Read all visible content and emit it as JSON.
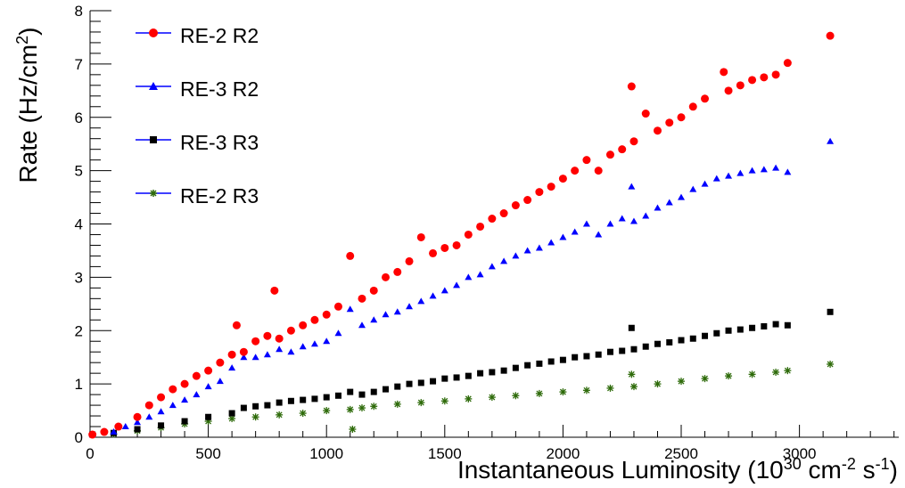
{
  "chart_data": {
    "type": "scatter",
    "ylabel_parts": [
      "Rate (Hz/cm",
      "2",
      ")"
    ],
    "xlabel_parts": [
      "Instantaneous Luminosity (10",
      "30",
      " cm",
      "-2",
      " s",
      "-1",
      ")"
    ],
    "xlim": [
      0,
      3420
    ],
    "ylim": [
      0,
      8
    ],
    "xticks": [
      "0",
      "500",
      "1000",
      "1500",
      "2000",
      "2500",
      "3000"
    ],
    "yticks": [
      "0",
      "1",
      "2",
      "3",
      "4",
      "5",
      "6",
      "7",
      "8"
    ],
    "grid": false,
    "legend_position": "top-left",
    "series": [
      {
        "name": "RE-2 R2",
        "marker": "circle",
        "color": "#ff0000",
        "points": [
          [
            10,
            0.05
          ],
          [
            60,
            0.1
          ],
          [
            120,
            0.2
          ],
          [
            200,
            0.38
          ],
          [
            250,
            0.6
          ],
          [
            300,
            0.75
          ],
          [
            350,
            0.9
          ],
          [
            400,
            1.0
          ],
          [
            450,
            1.15
          ],
          [
            500,
            1.25
          ],
          [
            550,
            1.4
          ],
          [
            600,
            1.55
          ],
          [
            620,
            2.1
          ],
          [
            650,
            1.6
          ],
          [
            700,
            1.8
          ],
          [
            750,
            1.9
          ],
          [
            780,
            2.75
          ],
          [
            800,
            1.85
          ],
          [
            850,
            2.0
          ],
          [
            900,
            2.1
          ],
          [
            950,
            2.2
          ],
          [
            1000,
            2.3
          ],
          [
            1050,
            2.45
          ],
          [
            1100,
            3.4
          ],
          [
            1150,
            2.6
          ],
          [
            1200,
            2.75
          ],
          [
            1250,
            3.0
          ],
          [
            1300,
            3.1
          ],
          [
            1350,
            3.3
          ],
          [
            1400,
            3.75
          ],
          [
            1450,
            3.45
          ],
          [
            1500,
            3.55
          ],
          [
            1550,
            3.6
          ],
          [
            1600,
            3.8
          ],
          [
            1650,
            3.95
          ],
          [
            1700,
            4.1
          ],
          [
            1750,
            4.2
          ],
          [
            1800,
            4.35
          ],
          [
            1850,
            4.45
          ],
          [
            1900,
            4.6
          ],
          [
            1950,
            4.7
          ],
          [
            2000,
            4.85
          ],
          [
            2050,
            5.0
          ],
          [
            2100,
            5.2
          ],
          [
            2150,
            5.0
          ],
          [
            2200,
            5.3
          ],
          [
            2250,
            5.4
          ],
          [
            2290,
            6.58
          ],
          [
            2300,
            5.55
          ],
          [
            2350,
            6.07
          ],
          [
            2400,
            5.75
          ],
          [
            2450,
            5.9
          ],
          [
            2500,
            6.0
          ],
          [
            2550,
            6.2
          ],
          [
            2600,
            6.35
          ],
          [
            2680,
            6.85
          ],
          [
            2700,
            6.5
          ],
          [
            2750,
            6.6
          ],
          [
            2800,
            6.7
          ],
          [
            2850,
            6.75
          ],
          [
            2900,
            6.8
          ],
          [
            2950,
            7.02
          ],
          [
            3130,
            7.53
          ]
        ]
      },
      {
        "name": "RE-3 R2",
        "marker": "triangle",
        "color": "#0000ff",
        "points": [
          [
            10,
            0.05
          ],
          [
            100,
            0.1
          ],
          [
            150,
            0.2
          ],
          [
            200,
            0.28
          ],
          [
            250,
            0.38
          ],
          [
            300,
            0.48
          ],
          [
            350,
            0.6
          ],
          [
            400,
            0.7
          ],
          [
            450,
            0.8
          ],
          [
            500,
            0.95
          ],
          [
            550,
            1.05
          ],
          [
            600,
            1.3
          ],
          [
            650,
            1.5
          ],
          [
            700,
            1.5
          ],
          [
            750,
            1.55
          ],
          [
            800,
            1.65
          ],
          [
            850,
            1.6
          ],
          [
            900,
            1.7
          ],
          [
            950,
            1.75
          ],
          [
            1000,
            1.8
          ],
          [
            1050,
            1.95
          ],
          [
            1100,
            2.4
          ],
          [
            1150,
            2.1
          ],
          [
            1200,
            2.2
          ],
          [
            1250,
            2.3
          ],
          [
            1300,
            2.35
          ],
          [
            1350,
            2.45
          ],
          [
            1400,
            2.55
          ],
          [
            1450,
            2.65
          ],
          [
            1500,
            2.75
          ],
          [
            1550,
            2.85
          ],
          [
            1600,
            3.0
          ],
          [
            1650,
            3.05
          ],
          [
            1700,
            3.2
          ],
          [
            1750,
            3.3
          ],
          [
            1800,
            3.4
          ],
          [
            1850,
            3.5
          ],
          [
            1900,
            3.55
          ],
          [
            1950,
            3.65
          ],
          [
            2000,
            3.75
          ],
          [
            2050,
            3.85
          ],
          [
            2100,
            4.0
          ],
          [
            2150,
            3.8
          ],
          [
            2200,
            4.0
          ],
          [
            2250,
            4.1
          ],
          [
            2290,
            4.7
          ],
          [
            2300,
            4.05
          ],
          [
            2350,
            4.15
          ],
          [
            2400,
            4.3
          ],
          [
            2450,
            4.4
          ],
          [
            2500,
            4.5
          ],
          [
            2550,
            4.65
          ],
          [
            2600,
            4.75
          ],
          [
            2650,
            4.85
          ],
          [
            2700,
            4.9
          ],
          [
            2750,
            4.95
          ],
          [
            2800,
            5.0
          ],
          [
            2850,
            5.02
          ],
          [
            2900,
            5.05
          ],
          [
            2950,
            4.97
          ],
          [
            3130,
            5.55
          ]
        ]
      },
      {
        "name": "RE-3 R3",
        "marker": "square",
        "color": "#000000",
        "points": [
          [
            10,
            0.05
          ],
          [
            100,
            0.08
          ],
          [
            200,
            0.15
          ],
          [
            300,
            0.22
          ],
          [
            400,
            0.3
          ],
          [
            500,
            0.38
          ],
          [
            600,
            0.45
          ],
          [
            650,
            0.55
          ],
          [
            700,
            0.58
          ],
          [
            750,
            0.6
          ],
          [
            800,
            0.65
          ],
          [
            850,
            0.68
          ],
          [
            900,
            0.7
          ],
          [
            950,
            0.72
          ],
          [
            1000,
            0.75
          ],
          [
            1050,
            0.78
          ],
          [
            1100,
            0.85
          ],
          [
            1150,
            0.8
          ],
          [
            1200,
            0.85
          ],
          [
            1250,
            0.9
          ],
          [
            1300,
            0.95
          ],
          [
            1350,
            1.0
          ],
          [
            1400,
            1.02
          ],
          [
            1450,
            1.05
          ],
          [
            1500,
            1.1
          ],
          [
            1550,
            1.12
          ],
          [
            1600,
            1.15
          ],
          [
            1650,
            1.2
          ],
          [
            1700,
            1.22
          ],
          [
            1750,
            1.25
          ],
          [
            1800,
            1.3
          ],
          [
            1850,
            1.35
          ],
          [
            1900,
            1.38
          ],
          [
            1950,
            1.42
          ],
          [
            2000,
            1.45
          ],
          [
            2050,
            1.5
          ],
          [
            2100,
            1.52
          ],
          [
            2150,
            1.55
          ],
          [
            2200,
            1.6
          ],
          [
            2250,
            1.62
          ],
          [
            2290,
            2.05
          ],
          [
            2300,
            1.65
          ],
          [
            2350,
            1.7
          ],
          [
            2400,
            1.75
          ],
          [
            2450,
            1.78
          ],
          [
            2500,
            1.82
          ],
          [
            2550,
            1.85
          ],
          [
            2600,
            1.9
          ],
          [
            2650,
            1.95
          ],
          [
            2700,
            2.0
          ],
          [
            2750,
            2.02
          ],
          [
            2800,
            2.05
          ],
          [
            2850,
            2.08
          ],
          [
            2900,
            2.12
          ],
          [
            2950,
            2.1
          ],
          [
            3130,
            2.35
          ]
        ]
      },
      {
        "name": "RE-2 R3",
        "marker": "star",
        "color": "#2e6b0a",
        "points": [
          [
            10,
            0.05
          ],
          [
            100,
            0.06
          ],
          [
            200,
            0.12
          ],
          [
            300,
            0.18
          ],
          [
            400,
            0.25
          ],
          [
            500,
            0.3
          ],
          [
            600,
            0.35
          ],
          [
            700,
            0.38
          ],
          [
            800,
            0.42
          ],
          [
            900,
            0.45
          ],
          [
            1000,
            0.5
          ],
          [
            1100,
            0.52
          ],
          [
            1110,
            0.15
          ],
          [
            1150,
            0.55
          ],
          [
            1200,
            0.58
          ],
          [
            1300,
            0.62
          ],
          [
            1400,
            0.65
          ],
          [
            1500,
            0.68
          ],
          [
            1600,
            0.72
          ],
          [
            1700,
            0.75
          ],
          [
            1800,
            0.78
          ],
          [
            1900,
            0.82
          ],
          [
            2000,
            0.85
          ],
          [
            2100,
            0.88
          ],
          [
            2200,
            0.92
          ],
          [
            2300,
            0.95
          ],
          [
            2290,
            1.18
          ],
          [
            2400,
            1.0
          ],
          [
            2500,
            1.05
          ],
          [
            2600,
            1.1
          ],
          [
            2700,
            1.15
          ],
          [
            2800,
            1.18
          ],
          [
            2900,
            1.22
          ],
          [
            2950,
            1.25
          ],
          [
            3130,
            1.37
          ]
        ]
      }
    ]
  }
}
